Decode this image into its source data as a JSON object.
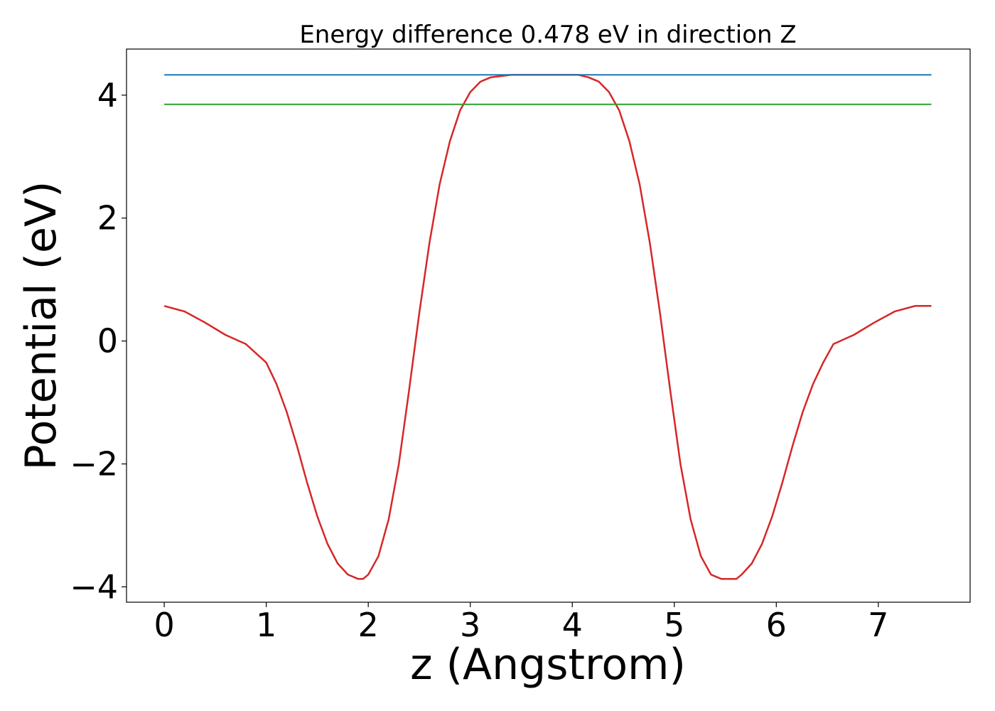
{
  "chart_data": {
    "type": "line",
    "title": "Energy difference 0.478 eV in direction Z",
    "xlabel": "z (Angstrom)",
    "ylabel": "Potential (eV)",
    "xlim": [
      -0.37,
      7.9
    ],
    "ylim": [
      -4.25,
      4.75
    ],
    "x_ticks": [
      0,
      1,
      2,
      3,
      4,
      5,
      6,
      7
    ],
    "x_tick_labels": [
      "0",
      "1",
      "2",
      "3",
      "4",
      "5",
      "6",
      "7"
    ],
    "y_ticks": [
      -4,
      -2,
      0,
      2,
      4
    ],
    "y_tick_labels": [
      "−4",
      "−2",
      "0",
      "2",
      "4"
    ],
    "grid": false,
    "series": [
      {
        "color": "#d62728",
        "x": [
          0,
          0.2,
          0.4,
          0.6,
          0.8,
          1.0,
          1.1,
          1.2,
          1.3,
          1.4,
          1.5,
          1.6,
          1.7,
          1.8,
          1.9,
          1.95,
          2.0,
          2.1,
          2.2,
          2.3,
          2.4,
          2.5,
          2.6,
          2.7,
          2.8,
          2.9,
          3.0,
          3.1,
          3.2,
          3.3,
          3.4,
          3.5,
          3.6,
          3.7,
          3.78,
          3.86,
          3.96,
          4.06,
          4.16,
          4.26,
          4.36,
          4.46,
          4.56,
          4.66,
          4.76,
          4.86,
          4.96,
          5.06,
          5.16,
          5.26,
          5.36,
          5.46,
          5.56,
          5.61,
          5.66,
          5.76,
          5.86,
          5.96,
          6.06,
          6.16,
          6.26,
          6.36,
          6.46,
          6.56,
          6.76,
          6.96,
          7.16,
          7.36,
          7.52
        ],
        "y": [
          0.57,
          0.48,
          0.3,
          0.1,
          -0.05,
          -0.35,
          -0.7,
          -1.15,
          -1.7,
          -2.3,
          -2.85,
          -3.3,
          -3.62,
          -3.8,
          -3.87,
          -3.87,
          -3.8,
          -3.5,
          -2.9,
          -2.0,
          -0.8,
          0.45,
          1.6,
          2.55,
          3.25,
          3.75,
          4.05,
          4.22,
          4.29,
          4.31,
          4.33,
          4.33,
          4.33,
          4.33,
          4.33,
          4.33,
          4.33,
          4.33,
          4.29,
          4.22,
          4.05,
          3.75,
          3.25,
          2.55,
          1.6,
          0.45,
          -0.8,
          -2.0,
          -2.9,
          -3.5,
          -3.8,
          -3.87,
          -3.87,
          -3.87,
          -3.8,
          -3.62,
          -3.3,
          -2.85,
          -2.3,
          -1.7,
          -1.15,
          -0.7,
          -0.35,
          -0.05,
          0.1,
          0.3,
          0.48,
          0.57,
          0.57
        ]
      },
      {
        "color": "#1f77b4",
        "x": [
          0,
          7.52
        ],
        "y": [
          4.33,
          4.33
        ]
      },
      {
        "color": "#2ca02c",
        "x": [
          0,
          7.52
        ],
        "y": [
          3.85,
          3.85
        ]
      }
    ]
  }
}
